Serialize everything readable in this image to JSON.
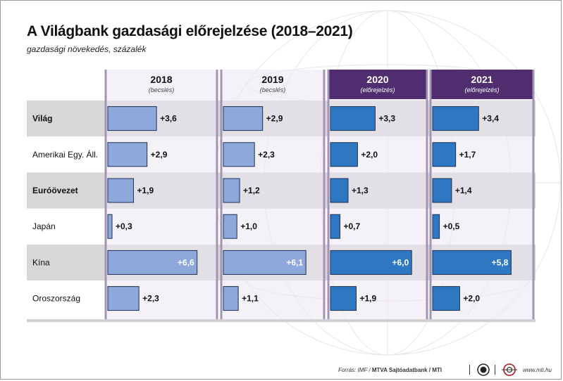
{
  "title": "A Világbank gazdasági előrejelzése (2018–2021)",
  "subtitle": "gazdasági növekedés, százalék",
  "chart_data": {
    "type": "bar",
    "orientation": "horizontal",
    "categories": [
      "Világ",
      "Amerikai Egy. Áll.",
      "Euróövezet",
      "Japán",
      "Kína",
      "Oroszország"
    ],
    "bold_categories": [
      "Világ",
      "Euróövezet"
    ],
    "series": [
      {
        "name": "2018",
        "note": "(becslés)",
        "values": [
          3.6,
          2.9,
          1.9,
          0.3,
          6.6,
          2.3
        ],
        "labels": [
          "+3,6",
          "+2,9",
          "+1,9",
          "+0,3",
          "+6,6",
          "+2,3"
        ]
      },
      {
        "name": "2019",
        "note": "(becslés)",
        "values": [
          2.9,
          2.3,
          1.2,
          1.0,
          6.1,
          1.1
        ],
        "labels": [
          "+2,9",
          "+2,3",
          "+1,2",
          "+1,0",
          "+6,1",
          "+1,1"
        ]
      },
      {
        "name": "2020",
        "note": "(előrejelzés)",
        "values": [
          3.3,
          2.0,
          1.3,
          0.7,
          6.0,
          1.9
        ],
        "labels": [
          "+3,3",
          "+2,0",
          "+1,3",
          "+0,7",
          "+6,0",
          "+1,9"
        ]
      },
      {
        "name": "2021",
        "note": "(előrejelzés)",
        "values": [
          3.4,
          1.7,
          1.4,
          0.5,
          5.8,
          2.0
        ],
        "labels": [
          "+3,4",
          "+1,7",
          "+1,4",
          "+0,5",
          "+5,8",
          "+2,0"
        ]
      }
    ],
    "colors": {
      "estimate_bar": "#8ea8dc",
      "forecast_bar": "#2e78c2",
      "forecast_header": "#4f2d6e",
      "column_bg": "#ede8f1",
      "column_border": "#a394b6",
      "stripe": "#d7d7d7"
    }
  },
  "footer": {
    "source_prefix": "Forrás: IMF / ",
    "source_bold": "MTVA Sajtóadatbank / MTI",
    "url": "www.mti.hu"
  }
}
